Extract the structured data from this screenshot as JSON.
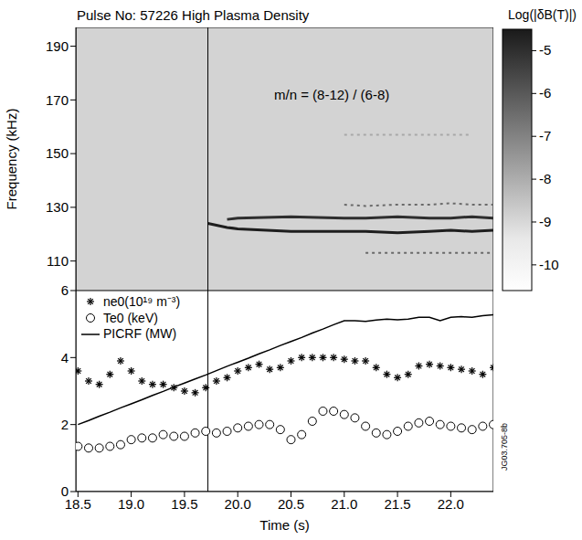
{
  "chart_data": [
    {
      "type": "line",
      "title": "Pulse No: 57226 High Plasma Density",
      "y_label": "Frequency (kHz)",
      "x": [
        18.5,
        19.0,
        19.5,
        19.72,
        19.9,
        20.0,
        20.5,
        21.0,
        21.2,
        21.5,
        21.8,
        22.0,
        22.2,
        22.4
      ],
      "series": [
        {
          "color": "#1e1e1e",
          "line_style": "solid",
          "values": [
            null,
            null,
            null,
            124,
            122.5,
            122,
            121,
            121,
            121,
            120.5,
            121,
            121.5,
            121,
            121.5
          ]
        },
        {
          "color": "#2e2e2e",
          "line_style": "solid",
          "values": [
            null,
            null,
            null,
            null,
            125.5,
            126,
            126.5,
            126,
            126,
            126.5,
            126,
            126,
            126.5,
            126
          ]
        },
        {
          "color": "#6a6a6a",
          "line_style": "dashed",
          "values": [
            null,
            null,
            null,
            null,
            null,
            null,
            null,
            131,
            130.5,
            131,
            131,
            131.5,
            131,
            131
          ]
        },
        {
          "color": "#6a6a6a",
          "line_style": "dashed",
          "values": [
            null,
            null,
            null,
            null,
            null,
            null,
            null,
            null,
            113,
            113,
            113,
            113,
            113,
            113
          ]
        },
        {
          "color": "#a8a8a8",
          "line_style": "dashed",
          "values": [
            null,
            null,
            null,
            null,
            null,
            null,
            null,
            157,
            157,
            157,
            157,
            157,
            157,
            null
          ]
        }
      ],
      "xlim": [
        18.48,
        22.4
      ],
      "ylim": [
        99,
        197
      ],
      "yticks": [
        110,
        130,
        150,
        170,
        190
      ],
      "tick_labels": "y",
      "annotations": [
        "m/n = (8-12) / (6-8)"
      ],
      "vertical_line": 19.72,
      "colorbar": {
        "label": "Log(|δB(T)|)",
        "range": [
          -10.6,
          -4.5
        ],
        "ticks": [
          -5,
          -6,
          -7,
          -8,
          -9,
          -10
        ]
      }
    },
    {
      "type": "line",
      "x_label": "Time (s)",
      "x": [
        18.5,
        18.6,
        18.7,
        18.8,
        18.9,
        19.0,
        19.1,
        19.2,
        19.3,
        19.4,
        19.5,
        19.6,
        19.7,
        19.8,
        19.9,
        20.0,
        20.1,
        20.2,
        20.3,
        20.4,
        20.5,
        20.6,
        20.7,
        20.8,
        20.9,
        21.0,
        21.1,
        21.2,
        21.3,
        21.4,
        21.5,
        21.6,
        21.7,
        21.8,
        21.9,
        22.0,
        22.1,
        22.2,
        22.3,
        22.4
      ],
      "series": [
        {
          "name": "ne0(10¹⁹ m⁻³)",
          "type": "scatter",
          "marker": "asterisk",
          "color": "#000000",
          "values": [
            3.6,
            3.3,
            3.2,
            3.5,
            3.9,
            3.6,
            3.3,
            3.2,
            3.2,
            3.1,
            3.0,
            2.95,
            3.1,
            3.3,
            3.4,
            3.6,
            3.7,
            3.8,
            3.65,
            3.7,
            3.9,
            4.0,
            4.0,
            4.0,
            4.0,
            3.95,
            3.9,
            3.9,
            3.7,
            3.5,
            3.4,
            3.5,
            3.75,
            3.8,
            3.75,
            3.7,
            3.65,
            3.6,
            3.5,
            3.7
          ]
        },
        {
          "name": "Te0 (keV)",
          "type": "scatter",
          "marker": "circle",
          "color": "#000000",
          "values": [
            1.35,
            1.3,
            1.3,
            1.35,
            1.4,
            1.55,
            1.6,
            1.6,
            1.7,
            1.65,
            1.65,
            1.75,
            1.8,
            1.75,
            1.8,
            1.9,
            1.95,
            2.0,
            2.0,
            1.85,
            1.55,
            1.7,
            2.1,
            2.4,
            2.4,
            2.3,
            2.2,
            1.95,
            1.75,
            1.7,
            1.8,
            1.95,
            2.05,
            2.1,
            2.0,
            1.95,
            1.9,
            1.85,
            1.95,
            2.0
          ]
        },
        {
          "name": "PICRF (MW)",
          "type": "line",
          "line_style": "solid",
          "color": "#000000",
          "values": [
            2.0,
            2.12,
            2.25,
            2.37,
            2.5,
            2.62,
            2.74,
            2.87,
            2.99,
            3.12,
            3.24,
            3.36,
            3.48,
            3.61,
            3.74,
            3.86,
            3.98,
            4.11,
            4.23,
            4.36,
            4.48,
            4.6,
            4.73,
            4.85,
            4.98,
            5.1,
            5.1,
            5.08,
            5.12,
            5.15,
            5.13,
            5.15,
            5.2,
            5.2,
            5.1,
            5.2,
            5.22,
            5.2,
            5.25,
            5.28
          ]
        }
      ],
      "xlim": [
        18.48,
        22.4
      ],
      "ylim": [
        0,
        6
      ],
      "xticks": [
        18.5,
        {
          "value": 19,
          "label": "19.0"
        },
        19.5,
        {
          "value": 20,
          "label": "20.0"
        },
        20.5,
        {
          "value": 21,
          "label": "21.0"
        },
        21.5,
        {
          "value": 22,
          "label": "22.0"
        }
      ],
      "yticks": [
        0,
        2,
        4,
        6
      ],
      "legend": "upper left",
      "vertical_line": 19.72,
      "annotations": [
        "JG03.705-8b"
      ]
    }
  ]
}
